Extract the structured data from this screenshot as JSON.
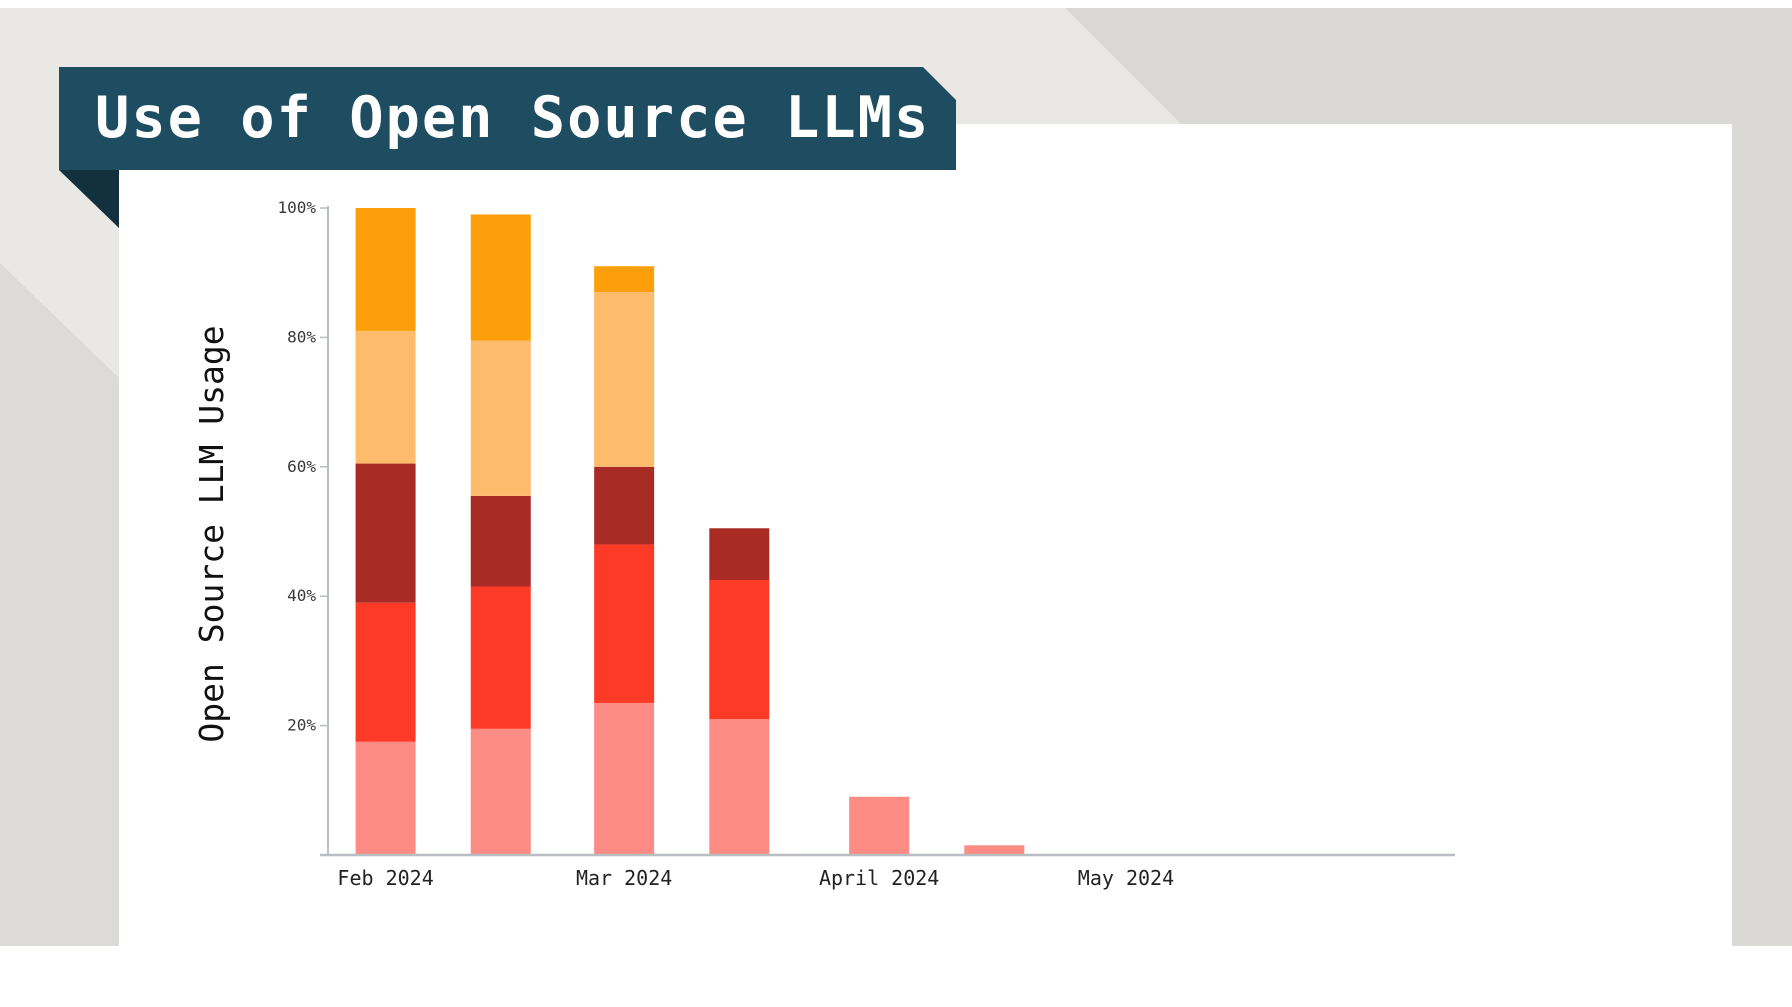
{
  "slide": {
    "title": "Use of Open Source LLMs",
    "colors": {
      "banner": "#1e4d61",
      "banner_fold": "#12303d",
      "background_gray": "#e4e3df",
      "panel": "#ffffff"
    }
  },
  "chart_data": {
    "type": "bar",
    "stacked": true,
    "title": "",
    "xlabel": "",
    "ylabel": "Open Source LLM Usage",
    "ylim": [
      0,
      100
    ],
    "y_ticks": [
      "20%",
      "40%",
      "60%",
      "80%",
      "100%"
    ],
    "x": [
      "2024-02-01",
      "2024-02-15",
      "2024-03-01",
      "2024-03-15",
      "2024-04-01",
      "2024-04-15"
    ],
    "x_tick_labels": [
      "Feb 2024",
      "Mar 2024",
      "April 2024",
      "May 2024"
    ],
    "x_tick_dates": [
      "2024-02-01",
      "2024-03-01",
      "2024-04-01",
      "2024-05-01"
    ],
    "x_range": [
      "2024-01-25",
      "2024-06-10"
    ],
    "grid": false,
    "legend": "none",
    "series": [
      {
        "color": "#fc8c84",
        "values": [
          17.5,
          19.5,
          23.5,
          21,
          9,
          1.5
        ]
      },
      {
        "color": "#fd3a26",
        "values": [
          21.5,
          22,
          24.5,
          21.5,
          0,
          0
        ]
      },
      {
        "color": "#a92b26",
        "values": [
          21.5,
          14,
          12,
          8,
          0,
          0
        ]
      },
      {
        "color": "#fdbc6b",
        "values": [
          20.5,
          24,
          27,
          0,
          0,
          0
        ]
      },
      {
        "color": "#fd9f0a",
        "values": [
          19,
          19.5,
          4,
          0,
          0,
          0
        ]
      }
    ]
  }
}
